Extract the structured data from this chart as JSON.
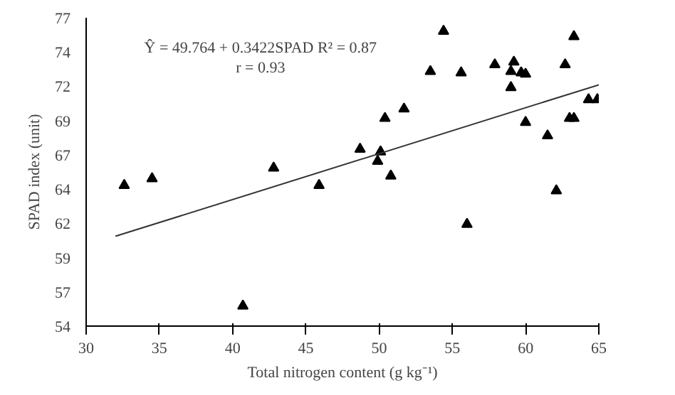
{
  "chart_data": {
    "type": "scatter",
    "xlabel": "Total nitrogen content (g kg⁻¹)",
    "ylabel": "SPAD index (unit)",
    "annotations": [
      "Ŷ = 49.764 + 0.3422SPAD R² = 0.87",
      "r = 0.93"
    ],
    "xlim": [
      30,
      65
    ],
    "xticks": [
      30,
      35,
      40,
      45,
      50,
      55,
      60,
      65
    ],
    "ylim": [
      54,
      77
    ],
    "yticks": [
      54,
      {
        "value": 56.56,
        "label": "57"
      },
      {
        "value": 59.11,
        "label": "59"
      },
      {
        "value": 61.67,
        "label": "62"
      },
      {
        "value": 64.22,
        "label": "64"
      },
      {
        "value": 66.78,
        "label": "67"
      },
      {
        "value": 69.33,
        "label": "69"
      },
      {
        "value": 71.89,
        "label": "72"
      },
      {
        "value": 74.44,
        "label": "74"
      },
      77
    ],
    "grid": false,
    "series": [
      {
        "marker": "triangle",
        "color": "#000000",
        "x": [
          32.6,
          34.5,
          40.7,
          42.8,
          45.9,
          48.7,
          49.9,
          50.1,
          50.8,
          50.4,
          51.7,
          53.5,
          54.4,
          55.6,
          56.0,
          57.9,
          59.2,
          59.0,
          59.0,
          59.7,
          60.0,
          60.0,
          61.5,
          62.1,
          62.7,
          63.3,
          63.0,
          63.3,
          64.3,
          64.9
        ],
        "values": [
          64.5,
          65.0,
          55.5,
          65.8,
          64.5,
          67.2,
          66.3,
          67.0,
          65.2,
          69.5,
          70.2,
          73.0,
          76.0,
          72.9,
          61.6,
          73.5,
          73.7,
          73.0,
          71.8,
          72.9,
          72.8,
          69.2,
          68.2,
          64.1,
          73.5,
          75.6,
          69.5,
          69.5,
          70.9,
          70.9
        ]
      },
      {
        "type": "line",
        "color": "#333333",
        "x": [
          32.0,
          65.0
        ],
        "values": [
          60.7,
          72.0
        ]
      }
    ]
  }
}
